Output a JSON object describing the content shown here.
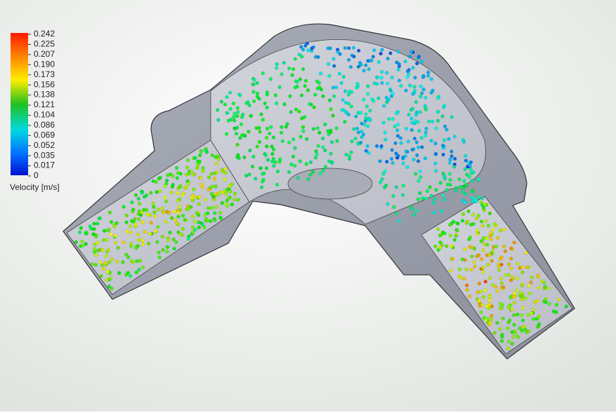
{
  "legend": {
    "ticks": [
      "0.242",
      "0.225",
      "0.207",
      "0.190",
      "0.173",
      "0.156",
      "0.138",
      "0.121",
      "0.104",
      "0.086",
      "0.069",
      "0.052",
      "0.035",
      "0.017",
      "0"
    ],
    "title": "Velocity [m/s]"
  }
}
